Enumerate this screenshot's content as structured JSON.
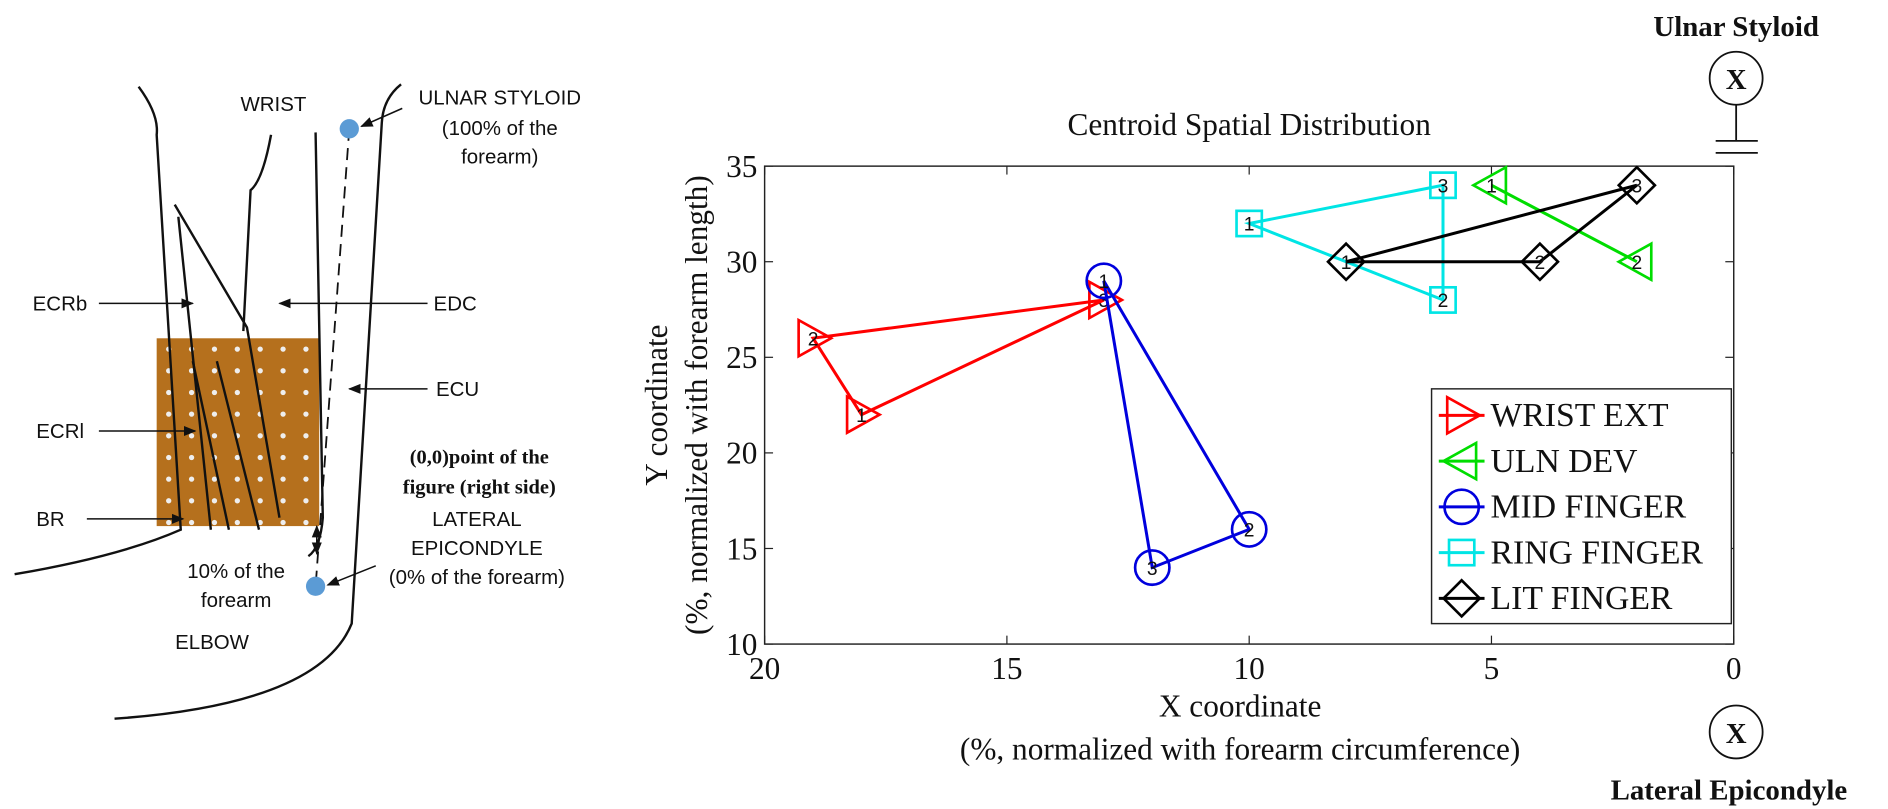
{
  "diagram": {
    "wrist": "WRIST",
    "ulnar_styloid": [
      "ULNAR STYLOID",
      "(100% of the",
      "forearm)"
    ],
    "ecrb": "ECRb",
    "edc": "EDC",
    "ecu": "ECU",
    "ecrl": "ECRl",
    "br": "BR",
    "origin_note": [
      "(0,0)point of the",
      "figure (right side)"
    ],
    "lateral_epicondyle": [
      "LATERAL",
      "EPICONDYLE",
      "(0% of the forearm)"
    ],
    "ten_percent": [
      "10% of the",
      "forearm"
    ],
    "elbow": "ELBOW"
  },
  "side_labels": {
    "top": "Ulnar Styloid",
    "bottom": "Lateral Epicondyle",
    "symbol": "X"
  },
  "chart_data": {
    "type": "line",
    "title": "Centroid Spatial Distribution",
    "xlabel": [
      "X coordinate",
      "(%, normalized with forearm circumference)"
    ],
    "ylabel": [
      "Y coordinate",
      "(%, normalized with forearm length)"
    ],
    "xlim": [
      20,
      0
    ],
    "ylim": [
      10,
      35
    ],
    "xticks": [
      20,
      15,
      10,
      5,
      0
    ],
    "yticks": [
      10,
      15,
      20,
      25,
      30,
      35
    ],
    "legend": "lower right",
    "series": [
      {
        "name": "WRIST EXT",
        "color": "#ff0000",
        "marker": "triangle-right",
        "x": [
          18,
          19,
          13
        ],
        "y": [
          22,
          26,
          28
        ],
        "labels": [
          "1",
          "2",
          "3"
        ]
      },
      {
        "name": "ULN DEV",
        "color": "#00dd00",
        "marker": "triangle-left",
        "x": [
          5,
          2
        ],
        "y": [
          34,
          30
        ],
        "labels": [
          "1",
          "2"
        ]
      },
      {
        "name": "MID FINGER",
        "color": "#0000dd",
        "marker": "circle",
        "x": [
          13,
          10,
          12
        ],
        "y": [
          29,
          16,
          14
        ],
        "labels": [
          "1",
          "2",
          "3"
        ]
      },
      {
        "name": "RING FINGER",
        "color": "#00e5e5",
        "marker": "square",
        "x": [
          10,
          6,
          6
        ],
        "y": [
          32,
          28,
          34
        ],
        "labels": [
          "1",
          "2",
          "3"
        ]
      },
      {
        "name": "LIT FINGER",
        "color": "#000000",
        "marker": "diamond",
        "x": [
          8,
          4,
          2
        ],
        "y": [
          30,
          30,
          34
        ],
        "labels": [
          "1",
          "2",
          "3"
        ]
      }
    ]
  }
}
